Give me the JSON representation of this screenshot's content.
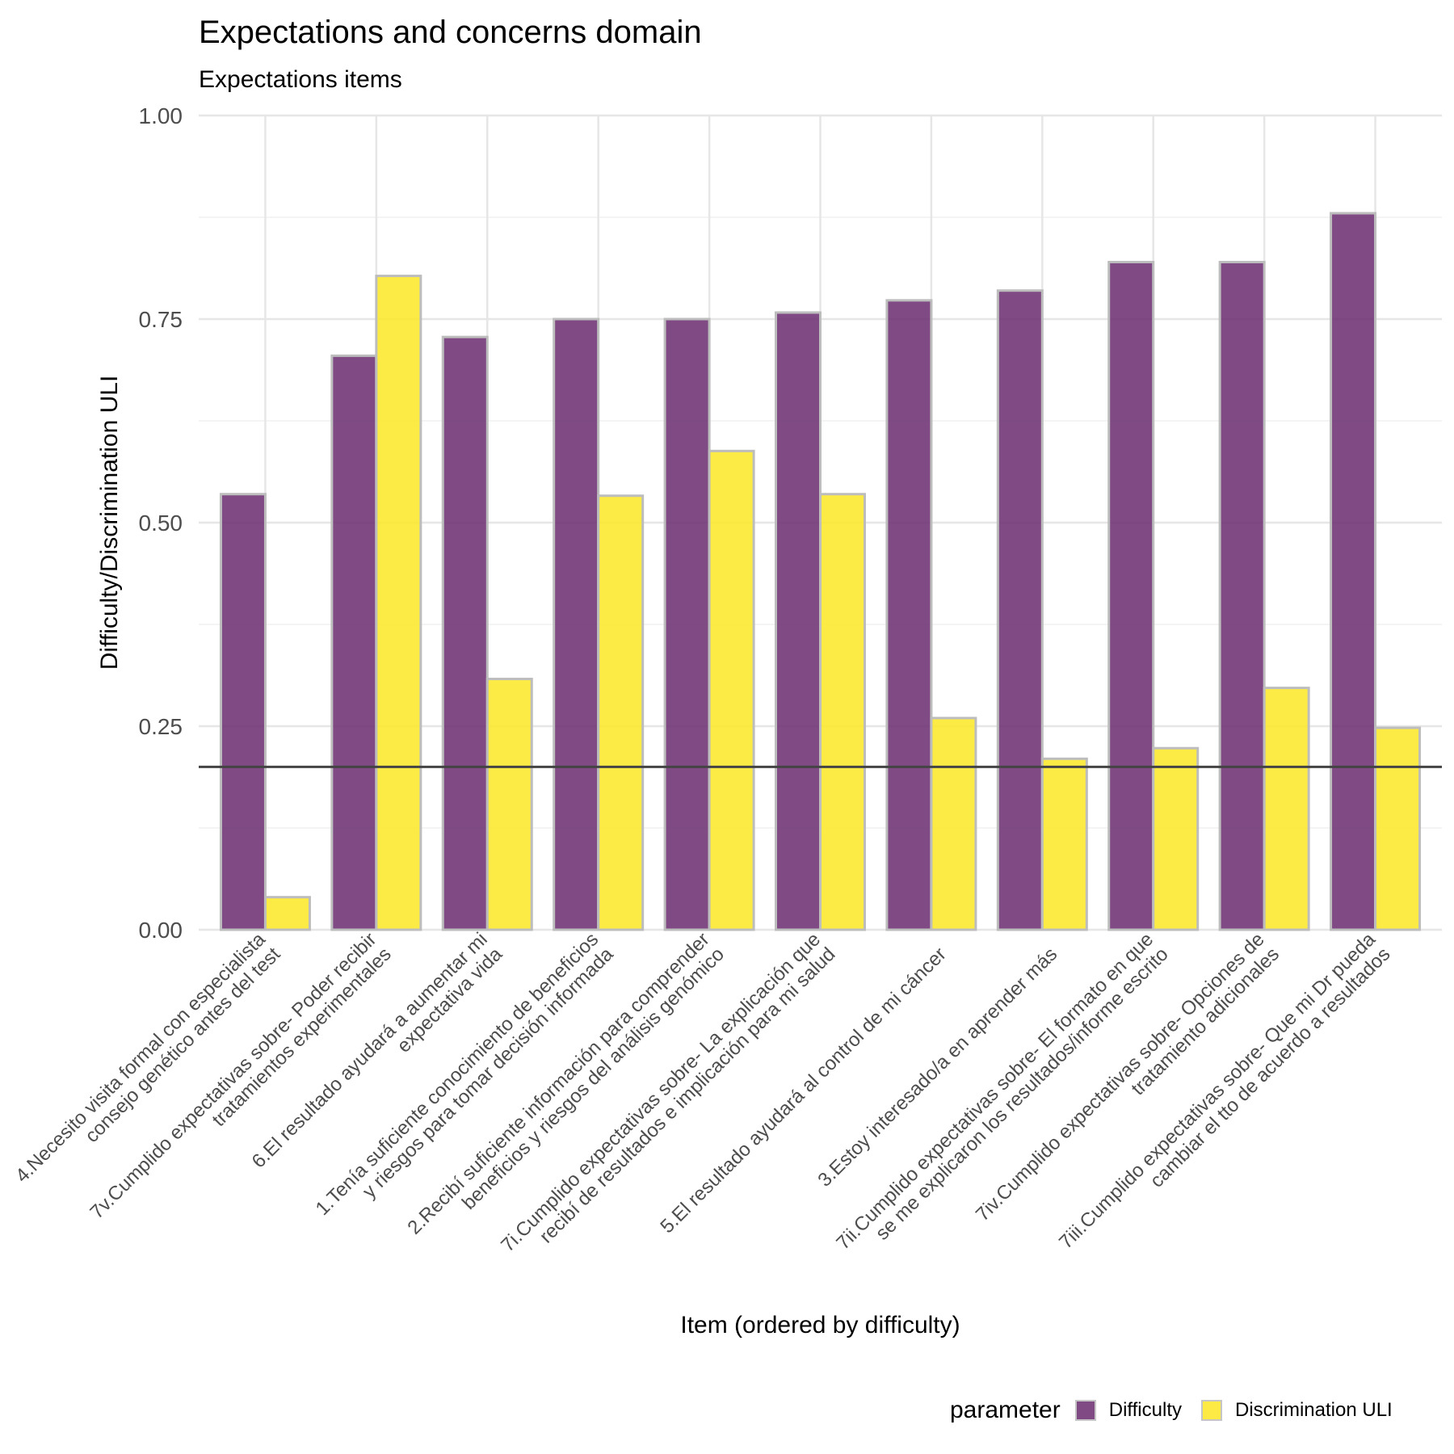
{
  "chart_data": {
    "type": "bar",
    "title": "Expectations and concerns domain",
    "subtitle": "Expectations items",
    "xlabel": "Item (ordered by difficulty)",
    "ylabel": "Difficulty/Discrimination ULI",
    "ylim": [
      0,
      1
    ],
    "yticks": [
      "0.00",
      "0.25",
      "0.50",
      "0.75",
      "1.00"
    ],
    "reference_line": 0.2,
    "grid": true,
    "legend": {
      "title": "parameter",
      "placement": "bottom-right",
      "entries": [
        "Difficulty",
        "Discrimination ULI"
      ]
    },
    "colors": {
      "Difficulty": "#6a2c70",
      "Discrimination ULI": "#fde725",
      "bar_outline": "#bdbdbd",
      "reference_line": "#444444",
      "grid": "#e6e6e6"
    },
    "categories": [
      [
        "4.Necesito visita formal con especialista",
        "consejo genético antes del test"
      ],
      [
        "7v.Cumplido expectativas sobre- Poder recibir",
        "tratamientos experimentales"
      ],
      [
        "6.El resultado ayudará a aumentar mi",
        "expectativa vida"
      ],
      [
        "1.Tenía suficiente conocimiento de beneficios",
        "y riesgos para tomar decisión informada"
      ],
      [
        "2.Recibí suficiente información para comprender",
        "beneficios y riesgos del análisis genómico"
      ],
      [
        "7i.Cumplido expectativas sobre- La explicación que",
        "recibí de resultados e implicación para mi salud"
      ],
      [
        "5.El resultado ayudará al control de mi cáncer"
      ],
      [
        "3.Estoy interesado/a en aprender más"
      ],
      [
        "7ii.Cumplido expectativas sobre- El formato en que",
        "se me explicaron los resultados/informe escrito"
      ],
      [
        "7iv.Cumplido expectativas sobre- Opciones de",
        "tratamiento adicionales"
      ],
      [
        "7iii.Cumplido expectativas sobre- Que mi Dr pueda",
        "cambiar el tto de acuerdo a resultados"
      ]
    ],
    "series": [
      {
        "name": "Difficulty",
        "values": [
          0.535,
          0.705,
          0.728,
          0.75,
          0.75,
          0.758,
          0.773,
          0.785,
          0.82,
          0.82,
          0.88
        ]
      },
      {
        "name": "Discrimination ULI",
        "values": [
          0.04,
          0.803,
          0.308,
          0.533,
          0.588,
          0.535,
          0.26,
          0.21,
          0.223,
          0.297,
          0.248
        ]
      }
    ]
  }
}
